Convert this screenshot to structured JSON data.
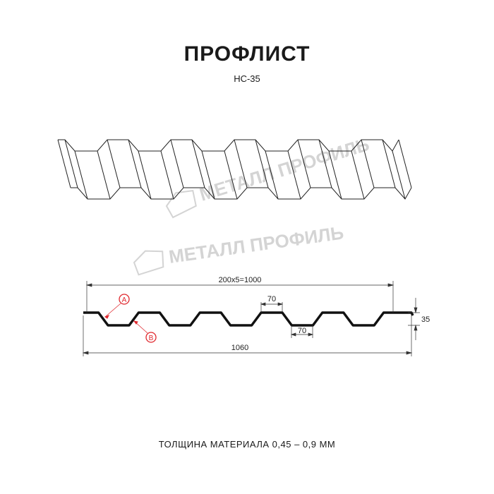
{
  "header": {
    "title": "ПРОФЛИСТ",
    "subtitle": "НС-35"
  },
  "watermark": {
    "text": "МЕТАЛЛ ПРОФИЛЬ",
    "color": "#d4d4d4"
  },
  "profile": {
    "width_dim": "200x5=1000",
    "top_rib_dim": "70",
    "bottom_rib_dim": "70",
    "height_dim": "35",
    "total_dim": "1060",
    "label_a": "A",
    "label_b": "B",
    "accent_color": "#e0282e"
  },
  "footer": {
    "thickness": "ТОЛЩИНА МАТЕРИАЛА 0,45 – 0,9 ММ"
  }
}
